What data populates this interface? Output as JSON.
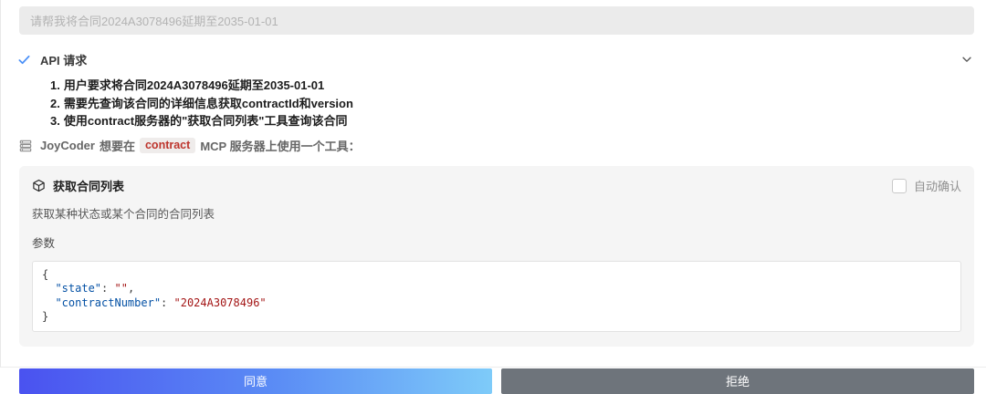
{
  "prompt_input": {
    "value": "请帮我将合同2024A3078496延期至2035-01-01"
  },
  "api_request": {
    "title": "API 请求",
    "status_icon": "check-icon",
    "collapse_icon": "chevron-down-icon",
    "steps": [
      {
        "num": "1.",
        "text": "用户要求将合同2024A3078496延期至2035-01-01"
      },
      {
        "num": "2.",
        "text": "需要先查询该合同的详细信息获取contractId和version"
      },
      {
        "num": "3.",
        "text": "使用contract服务器的\"获取合同列表\"工具查询该合同"
      }
    ]
  },
  "tool_request": {
    "icon": "server-icon",
    "agent": "JoyCoder",
    "text_before": "想要在",
    "server": "contract",
    "text_after": "MCP 服务器上使用一个工具："
  },
  "tool_card": {
    "icon": "cube-icon",
    "title": "获取合同列表",
    "auto_confirm_label": "自动确认",
    "auto_confirm_checked": false,
    "description": "获取某种状态或某个合同的合同列表",
    "params_label": "参数",
    "code_lines": [
      [
        [
          "punct",
          "{"
        ]
      ],
      [
        [
          "punct",
          "  "
        ],
        [
          "key",
          "\"state\""
        ],
        [
          "punct",
          ": "
        ],
        [
          "string",
          "\"\""
        ],
        [
          "punct",
          ","
        ]
      ],
      [
        [
          "punct",
          "  "
        ],
        [
          "key",
          "\"contractNumber\""
        ],
        [
          "punct",
          ": "
        ],
        [
          "string",
          "\"2024A3078496\""
        ]
      ],
      [
        [
          "punct",
          "}"
        ]
      ]
    ]
  },
  "actions": {
    "approve_label": "同意",
    "reject_label": "拒绝"
  },
  "colors": {
    "approve_gradient_start": "#4a52f0",
    "approve_gradient_end": "#7ecbf9",
    "reject_bg": "#6e747b",
    "check_blue": "#4a90f8",
    "json_key": "#0451a5",
    "json_string": "#a31515",
    "inline_code_red": "#bd342c",
    "card_bg": "#f5f5f5"
  }
}
